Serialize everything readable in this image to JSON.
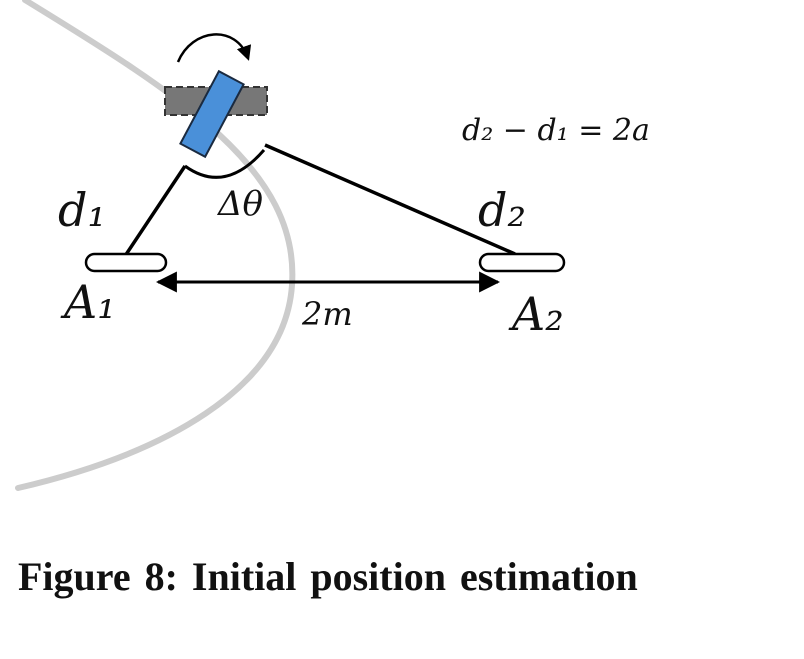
{
  "diagram": {
    "equation": "d₂ − d₁ = 2a",
    "angle_label": "Δθ",
    "baseline_label": "2m",
    "distance_labels": {
      "d1": "d₁",
      "d2": "d₂"
    },
    "antenna_labels": {
      "a1": "A₁",
      "a2": "A₂"
    },
    "colors": {
      "tag_fill": "#4a90d9",
      "tag_stroke": "#1a2a40",
      "ghost_fill": "#777777",
      "hyperbola": "#cccccc",
      "lines": "#000000"
    }
  },
  "caption": {
    "text": "Figure 8: Initial position estimation"
  }
}
